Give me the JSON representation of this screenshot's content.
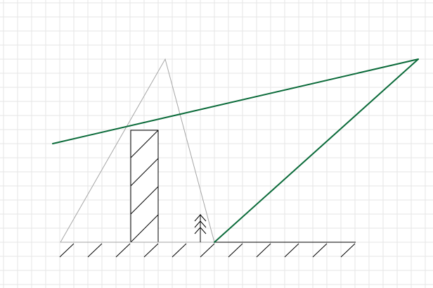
{
  "colors": {
    "background": "#ffffff",
    "grid_line": "#e6e6e6",
    "construction": "#a6a6a6",
    "sight_line": "#0b6b3a",
    "ink": "#000000"
  },
  "diagram": {
    "elements": [
      "grid",
      "ground-line",
      "ground-hatching",
      "building",
      "building-hatching",
      "grey-triangle",
      "tree-icon",
      "green-sight-line",
      "green-line"
    ]
  }
}
